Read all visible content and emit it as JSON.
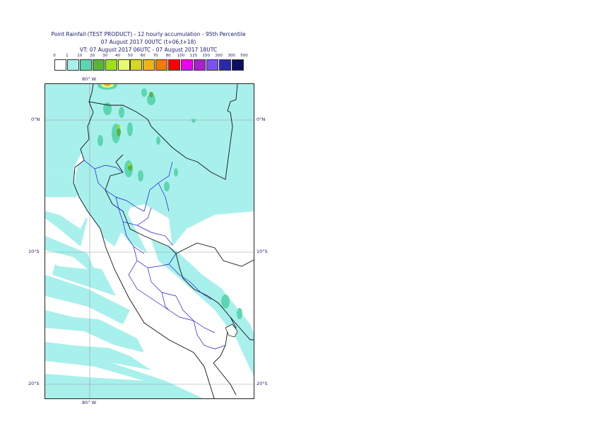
{
  "header": {
    "line1": "Point Rainfall (TEST PRODUCT) - 12 hourly accumulation - 95th Percentile",
    "line2": "07 August 2017 00UTC (t+06,t+18)",
    "line3": "VT: 07 August 2017 06UTC - 07 August 2017 18UTC"
  },
  "legend": {
    "thresholds": [
      "0",
      "1",
      "10",
      "20",
      "30",
      "40",
      "50",
      "60",
      "70",
      "80",
      "100",
      "125",
      "150",
      "200",
      "300",
      "500"
    ],
    "colors": [
      "#ffffff",
      "#a8f0ec",
      "#5cd6b0",
      "#5ab43c",
      "#9ee01e",
      "#e8f878",
      "#d6d628",
      "#f0b21e",
      "#f07a0a",
      "#ff0000",
      "#ee00ee",
      "#aa22cc",
      "#7a52ee",
      "#2a2aa8",
      "#0e0e5e"
    ]
  },
  "axes": {
    "lon_label_top": "80° W",
    "lon_label_bottom": "80° W",
    "lat_left": [
      "0°N",
      "10°S",
      "20°S"
    ],
    "lat_right": [
      "0°N",
      "10°S",
      "20°S"
    ]
  }
}
